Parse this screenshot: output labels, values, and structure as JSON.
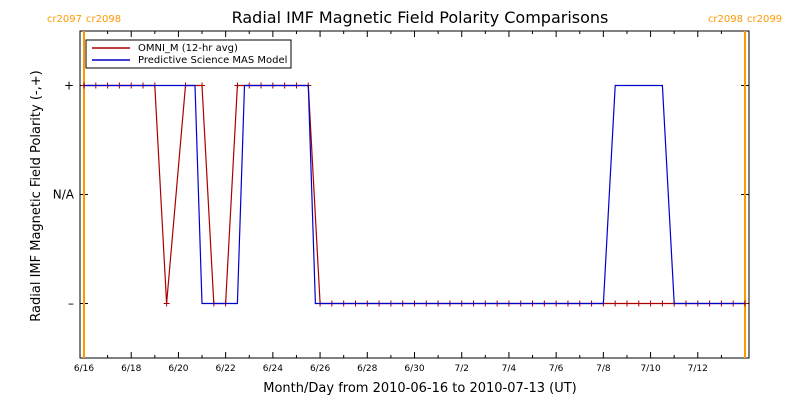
{
  "chart_data": {
    "type": "line",
    "title": "Radial IMF Magnetic Field Polarity Comparisons",
    "xlabel": "Month/Day from 2010-06-16 to 2010-07-13 (UT)",
    "ylabel": "Radial IMF Magnetic Field Polarity (-,+)",
    "x_unit": "day",
    "xlim": [
      0,
      28
    ],
    "ylim": [
      -1.5,
      1.5
    ],
    "x_ticks": [
      {
        "value": 0,
        "label": "6/16"
      },
      {
        "value": 2,
        "label": "6/18"
      },
      {
        "value": 4,
        "label": "6/20"
      },
      {
        "value": 6,
        "label": "6/22"
      },
      {
        "value": 8,
        "label": "6/24"
      },
      {
        "value": 10,
        "label": "6/26"
      },
      {
        "value": 12,
        "label": "6/28"
      },
      {
        "value": 14,
        "label": "6/30"
      },
      {
        "value": 16,
        "label": "7/2"
      },
      {
        "value": 18,
        "label": "7/4"
      },
      {
        "value": 20,
        "label": "7/6"
      },
      {
        "value": 22,
        "label": "7/8"
      },
      {
        "value": 24,
        "label": "7/10"
      },
      {
        "value": 26,
        "label": "7/12"
      }
    ],
    "y_ticks": [
      {
        "value": 1,
        "label": "+"
      },
      {
        "value": 0,
        "label": "N/A"
      },
      {
        "value": -1,
        "label": "–"
      }
    ],
    "legend_position": "top-left",
    "series": [
      {
        "name": "OMNI_M (12-hr avg)",
        "color": "#aa0000",
        "marker": "plus",
        "x": [
          0,
          0.5,
          1,
          1.5,
          2,
          2.5,
          3,
          3.5,
          4.3,
          5.0,
          5.5,
          6.0,
          6.5,
          7.0,
          7.5,
          8.0,
          8.5,
          9.0,
          9.5,
          10.0,
          10.5,
          11.0,
          11.5,
          12.0,
          12.5,
          13.0,
          13.5,
          14.0,
          14.5,
          15.0,
          15.5,
          16.0,
          16.5,
          17.0,
          17.5,
          18.0,
          18.5,
          19.0,
          19.5,
          20.0,
          20.5,
          21.0,
          21.5,
          22.0,
          22.5,
          23.0,
          23.5,
          24.0,
          24.5,
          25.0,
          25.5,
          26.0,
          26.5,
          27.0,
          27.5,
          28.0
        ],
        "y": [
          1,
          1,
          1,
          1,
          1,
          1,
          1,
          -1,
          1,
          1,
          -1,
          -1,
          1,
          1,
          1,
          1,
          1,
          1,
          1,
          -1,
          -1,
          -1,
          -1,
          -1,
          -1,
          -1,
          -1,
          -1,
          -1,
          -1,
          -1,
          -1,
          -1,
          -1,
          -1,
          -1,
          -1,
          -1,
          -1,
          -1,
          -1,
          -1,
          -1,
          -1,
          -1,
          -1,
          -1,
          -1,
          -1,
          -1,
          -1,
          -1,
          -1,
          -1,
          -1,
          -1
        ]
      },
      {
        "name": "Predictive Science MAS Model",
        "color": "#0000cc",
        "marker": "none",
        "x": [
          0,
          3.0,
          3.7,
          4.5,
          4.7,
          5.0,
          5.5,
          6.5,
          6.8,
          9.5,
          9.8,
          22.0,
          22.5,
          24.5,
          25.0,
          28.0
        ],
        "y": [
          1,
          1,
          1,
          1,
          1,
          -1,
          -1,
          -1,
          1,
          1,
          -1,
          -1,
          1,
          1,
          -1,
          -1
        ]
      }
    ],
    "vertical_markers": [
      {
        "x": 0,
        "label_left": "cr2097",
        "label_right": "cr2098",
        "color": "#ff9900"
      },
      {
        "x": 28,
        "label_left": "cr2098",
        "label_right": "cr2099",
        "color": "#ff9900"
      }
    ]
  }
}
